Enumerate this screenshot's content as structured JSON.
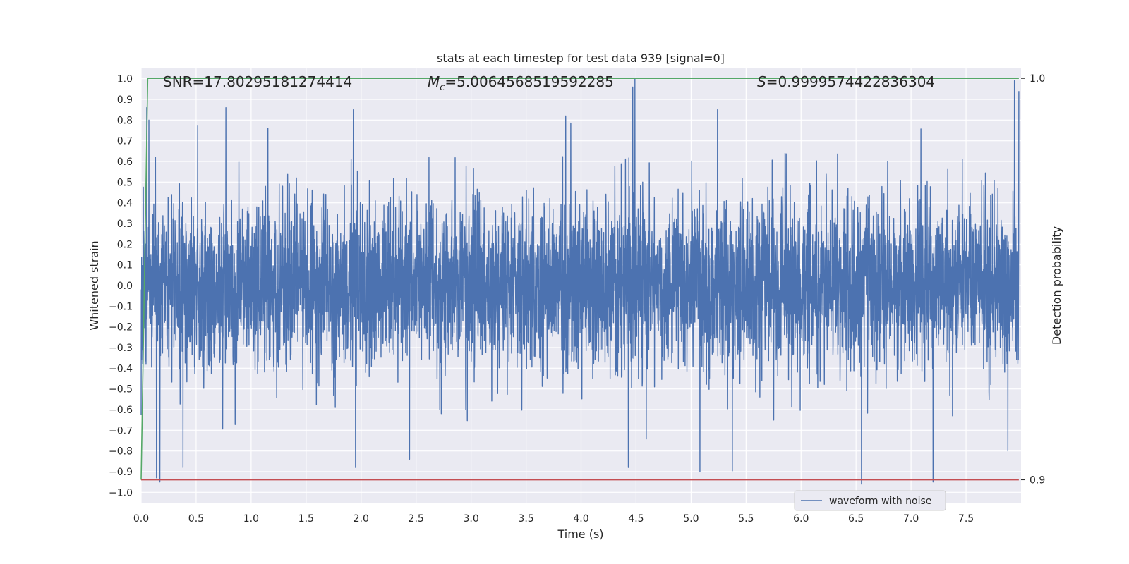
{
  "chart_data": {
    "type": "line",
    "title": "stats at each timestep for test data 939 [signal=0]",
    "xlabel": "Time (s)",
    "ylabel": "Whitened strain",
    "y2label": "Detection probability",
    "xlim": [
      0.0,
      8.0
    ],
    "ylim": [
      -1.05,
      1.05
    ],
    "y2lim": [
      0.8943,
      1.0025
    ],
    "grid": true,
    "legend_position": "lower-right",
    "background_color": "#EAEAF2",
    "x_ticks": [
      0.0,
      0.5,
      1.0,
      1.5,
      2.0,
      2.5,
      3.0,
      3.5,
      4.0,
      4.5,
      5.0,
      5.5,
      6.0,
      6.5,
      7.0,
      7.5
    ],
    "x_tick_labels": [
      "0.0",
      "0.5",
      "1.0",
      "1.5",
      "2.0",
      "2.5",
      "3.0",
      "3.5",
      "4.0",
      "4.5",
      "5.0",
      "5.5",
      "6.0",
      "6.5",
      "7.0",
      "7.5"
    ],
    "y_ticks": [
      1.0,
      0.9,
      0.8,
      0.7,
      0.6,
      0.5,
      0.4,
      0.3,
      0.2,
      0.1,
      0.0,
      -0.1,
      -0.2,
      -0.3,
      -0.4,
      -0.5,
      -0.6,
      -0.7,
      -0.8,
      -0.9,
      -1.0
    ],
    "y_tick_labels": [
      "1.0",
      "0.9",
      "0.8",
      "0.7",
      "0.6",
      "0.5",
      "0.4",
      "0.3",
      "0.2",
      "0.1",
      "0.0",
      "−0.1",
      "−0.2",
      "−0.3",
      "−0.4",
      "−0.5",
      "−0.6",
      "−0.7",
      "−0.8",
      "−0.9",
      "−1.0"
    ],
    "y2_ticks": [
      1.0,
      0.9
    ],
    "y2_tick_labels": [
      "1.0",
      "0.9"
    ],
    "annotations": {
      "snr": "SNR=17.80295181274414",
      "mc_symbol": "M",
      "mc_subscript": "c",
      "mc_value": "=5.0064568519592285",
      "s_symbol": "S",
      "s_value": "=0.9999574422836304"
    },
    "series": [
      {
        "name": "waveform with noise",
        "color": "#4C72B0",
        "kind": "noise",
        "x_range": [
          0.0,
          7.98
        ],
        "typical_std": 0.2,
        "max": 1.0,
        "min": -0.96,
        "spikes_positive": [
          [
            0.05,
            0.86
          ],
          [
            0.07,
            0.8
          ],
          [
            0.13,
            0.62
          ],
          [
            0.77,
            0.86
          ],
          [
            1.93,
            0.85
          ],
          [
            3.86,
            0.82
          ],
          [
            4.47,
            0.96
          ],
          [
            4.49,
            1.0
          ],
          [
            5.24,
            0.85
          ],
          [
            7.94,
            0.99
          ],
          [
            7.98,
            0.94
          ]
        ],
        "spikes_negative": [
          [
            0.14,
            -0.93
          ],
          [
            0.17,
            -0.95
          ],
          [
            0.38,
            -0.88
          ],
          [
            1.95,
            -0.88
          ],
          [
            2.44,
            -0.84
          ],
          [
            4.43,
            -0.88
          ],
          [
            5.08,
            -0.9
          ],
          [
            6.55,
            -0.96
          ],
          [
            7.2,
            -0.95
          ],
          [
            7.88,
            -0.8
          ]
        ]
      },
      {
        "name": "detection probability",
        "color": "#55A868",
        "axis": "right",
        "x": [
          0.0,
          0.06,
          7.98
        ],
        "values": [
          0.9,
          1.0,
          1.0
        ]
      },
      {
        "name": "threshold",
        "color": "#C44E52",
        "axis": "right",
        "x": [
          0.0,
          7.98
        ],
        "values": [
          0.9,
          0.9
        ]
      }
    ],
    "legend": [
      "waveform with noise"
    ]
  }
}
